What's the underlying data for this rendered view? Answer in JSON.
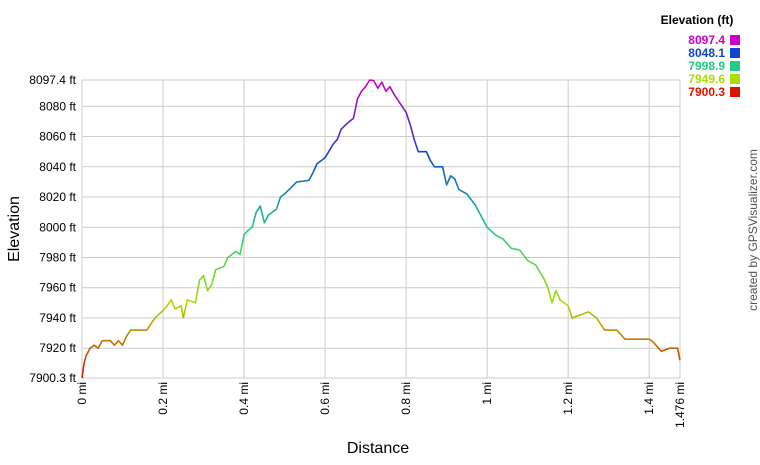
{
  "chart_data": {
    "type": "line",
    "x_label": "Distance",
    "y_label": "Elevation",
    "legend_title": "Elevation (ft)",
    "credit": "created by GPSVisualizer.com",
    "color_scale": [
      {
        "value": 8097.4,
        "color": "#cc00cc"
      },
      {
        "value": 8048.1,
        "color": "#1144cc"
      },
      {
        "value": 7998.9,
        "color": "#22cc88"
      },
      {
        "value": 7949.6,
        "color": "#aadd00"
      },
      {
        "value": 7900.3,
        "color": "#dd1100"
      }
    ],
    "grid": true,
    "xlim": [
      0,
      1.476
    ],
    "ylim": [
      7900.3,
      8097.4
    ],
    "xticks": [
      {
        "value": 0,
        "label": "0 mi"
      },
      {
        "value": 0.2,
        "label": "0.2 mi"
      },
      {
        "value": 0.4,
        "label": "0.4 mi"
      },
      {
        "value": 0.6,
        "label": "0.6 mi"
      },
      {
        "value": 0.8,
        "label": "0.8 mi"
      },
      {
        "value": 1,
        "label": "1 mi"
      },
      {
        "value": 1.2,
        "label": "1.2 mi"
      },
      {
        "value": 1.4,
        "label": "1.4 mi"
      },
      {
        "value": 1.476,
        "label": "1.476 mi"
      }
    ],
    "yticks": [
      {
        "value": 7900.3,
        "label": "7900.3 ft"
      },
      {
        "value": 7920,
        "label": "7920 ft"
      },
      {
        "value": 7940,
        "label": "7940 ft"
      },
      {
        "value": 7960,
        "label": "7960 ft"
      },
      {
        "value": 7980,
        "label": "7980 ft"
      },
      {
        "value": 8000,
        "label": "8000 ft"
      },
      {
        "value": 8020,
        "label": "8020 ft"
      },
      {
        "value": 8040,
        "label": "8040 ft"
      },
      {
        "value": 8060,
        "label": "8060 ft"
      },
      {
        "value": 8080,
        "label": "8080 ft"
      },
      {
        "value": 8097.4,
        "label": "8097.4 ft"
      }
    ],
    "x": [
      0,
      0.005,
      0.01,
      0.02,
      0.03,
      0.04,
      0.05,
      0.07,
      0.08,
      0.09,
      0.1,
      0.11,
      0.12,
      0.16,
      0.18,
      0.2,
      0.21,
      0.22,
      0.23,
      0.245,
      0.25,
      0.26,
      0.28,
      0.29,
      0.3,
      0.31,
      0.32,
      0.33,
      0.35,
      0.36,
      0.38,
      0.39,
      0.4,
      0.41,
      0.42,
      0.43,
      0.44,
      0.45,
      0.46,
      0.47,
      0.48,
      0.49,
      0.5,
      0.53,
      0.56,
      0.57,
      0.58,
      0.6,
      0.62,
      0.63,
      0.64,
      0.66,
      0.67,
      0.68,
      0.69,
      0.7,
      0.71,
      0.72,
      0.73,
      0.74,
      0.75,
      0.76,
      0.77,
      0.78,
      0.79,
      0.8,
      0.81,
      0.82,
      0.83,
      0.85,
      0.86,
      0.87,
      0.89,
      0.9,
      0.91,
      0.92,
      0.93,
      0.95,
      0.97,
      0.99,
      1.0,
      1.02,
      1.04,
      1.06,
      1.08,
      1.1,
      1.12,
      1.14,
      1.15,
      1.16,
      1.17,
      1.18,
      1.2,
      1.21,
      1.25,
      1.27,
      1.29,
      1.32,
      1.34,
      1.4,
      1.41,
      1.43,
      1.45,
      1.47,
      1.476
    ],
    "values": [
      7900.3,
      7910,
      7915,
      7920,
      7922,
      7920,
      7925,
      7925,
      7922,
      7925,
      7922,
      7928,
      7932,
      7932,
      7940,
      7945,
      7948,
      7952,
      7946,
      7948,
      7940,
      7952,
      7950,
      7965,
      7968,
      7958,
      7962,
      7972,
      7974,
      7980,
      7984,
      7982,
      7995,
      7998,
      8000,
      8010,
      8014,
      8003,
      8008,
      8010,
      8012,
      8020,
      8022,
      8030,
      8031,
      8036,
      8042,
      8046,
      8055,
      8058,
      8065,
      8070,
      8072,
      8085,
      8090,
      8093,
      8097.4,
      8097,
      8092,
      8096,
      8090,
      8093,
      8088,
      8084,
      8080,
      8076,
      8068,
      8058,
      8050,
      8050,
      8044,
      8040,
      8040,
      8028,
      8034,
      8032,
      8025,
      8022,
      8015,
      8005,
      8000,
      7995,
      7992,
      7986,
      7985,
      7978,
      7975,
      7966,
      7960,
      7950,
      7958,
      7952,
      7948,
      7940,
      7944,
      7940,
      7932,
      7932,
      7926,
      7926,
      7924,
      7918,
      7920,
      7920,
      7912
    ]
  }
}
